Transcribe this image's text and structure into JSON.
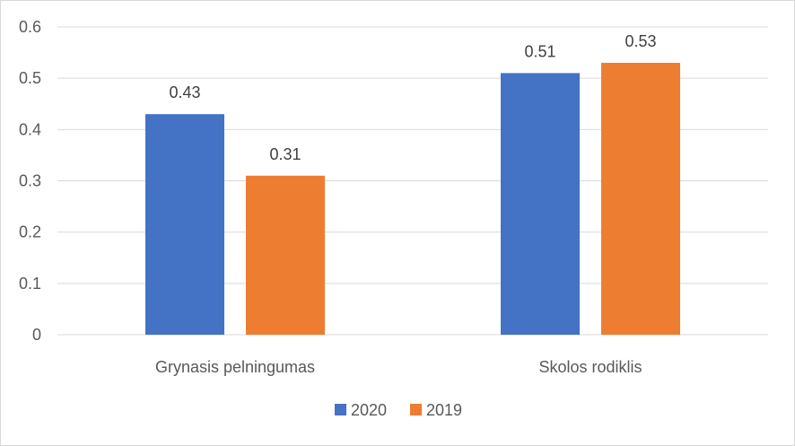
{
  "chart_data": {
    "type": "bar",
    "title": "",
    "xlabel": "",
    "ylabel": "",
    "categories": [
      "Grynasis pelningumas",
      "Skolos rodiklis"
    ],
    "series": [
      {
        "name": "2020",
        "values": [
          0.43,
          0.51
        ],
        "color": "#4472c4"
      },
      {
        "name": "2019",
        "values": [
          0.31,
          0.53
        ],
        "color": "#ed7d31"
      }
    ],
    "ylim": [
      0,
      0.6
    ],
    "yticks": [
      "0",
      "0.1",
      "0.2",
      "0.3",
      "0.4",
      "0.5",
      "0.6"
    ],
    "grid": true,
    "legend": "bottom",
    "data_labels": [
      [
        "0.43",
        "0.51"
      ],
      [
        "0.31",
        "0.53"
      ]
    ]
  }
}
